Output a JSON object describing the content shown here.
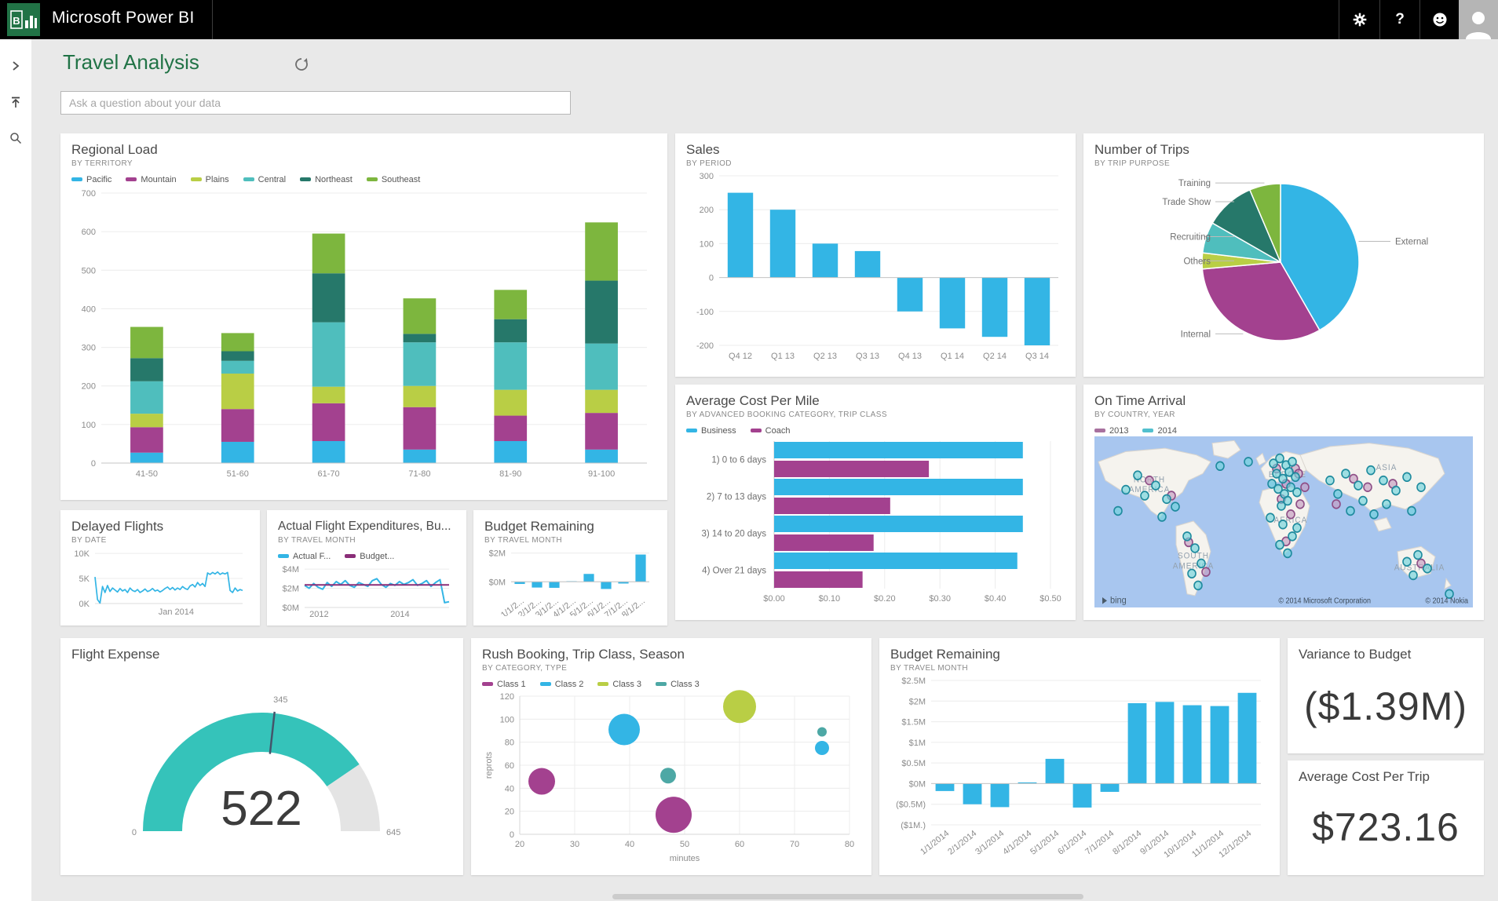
{
  "topbar": {
    "brand": "Microsoft Power BI"
  },
  "page": {
    "title": "Travel Analysis",
    "search_placeholder": "Ask a question about your data"
  },
  "cards": {
    "variance": {
      "title": "Variance to Budget",
      "value": "($1.39M)"
    },
    "avg_trip": {
      "title": "Average Cost Per Trip",
      "value": "$723.16"
    }
  },
  "chart_data": [
    {
      "id": "regional_load",
      "type": "bar",
      "stacked": true,
      "title": "Regional Load",
      "subtitle": "BY TERRITORY",
      "categories": [
        "41-50",
        "51-60",
        "61-70",
        "71-80",
        "81-90",
        "91-100"
      ],
      "series": [
        {
          "name": "Pacific",
          "color": "#33B5E5",
          "values": [
            27,
            55,
            57,
            35,
            57,
            35
          ]
        },
        {
          "name": "Mountain",
          "color": "#A3418F",
          "values": [
            66,
            85,
            98,
            110,
            66,
            95
          ]
        },
        {
          "name": "Plains",
          "color": "#B9CE45",
          "values": [
            35,
            92,
            43,
            55,
            67,
            60
          ]
        },
        {
          "name": "Central",
          "color": "#4FBEBD",
          "values": [
            84,
            33,
            167,
            113,
            123,
            120
          ]
        },
        {
          "name": "Northeast",
          "color": "#26786A",
          "values": [
            60,
            25,
            127,
            22,
            60,
            163
          ]
        },
        {
          "name": "Southeast",
          "color": "#7DB63E",
          "values": [
            81,
            47,
            103,
            92,
            76,
            151
          ]
        }
      ],
      "ylim": [
        0,
        700
      ],
      "yticks": [
        {
          "v": 700,
          "t": "700"
        },
        {
          "v": 600,
          "t": "600"
        },
        {
          "v": 500,
          "t": "500"
        },
        {
          "v": 400,
          "t": "400"
        },
        {
          "v": 300,
          "t": "300"
        },
        {
          "v": 200,
          "t": "200"
        },
        {
          "v": 100,
          "t": "100"
        },
        {
          "v": 0,
          "t": "0"
        }
      ],
      "grid": true,
      "legend_position": "top"
    },
    {
      "id": "sales",
      "type": "bar",
      "title": "Sales",
      "subtitle": "BY PERIOD",
      "color": "#33B5E5",
      "categories": [
        "Q4 12",
        "Q1 13",
        "Q2 13",
        "Q3 13",
        "Q4 13",
        "Q1 14",
        "Q2 14",
        "Q3 14"
      ],
      "values": [
        250,
        200,
        100,
        78,
        -100,
        -150,
        -175,
        -200
      ],
      "ylim": [
        -200,
        300
      ],
      "yticks": [
        {
          "v": 300,
          "t": "300"
        },
        {
          "v": 200,
          "t": "200"
        },
        {
          "v": 100,
          "t": "100"
        },
        {
          "v": 0,
          "t": "0"
        },
        {
          "v": -100,
          "t": "-100"
        },
        {
          "v": -200,
          "t": "-200"
        }
      ],
      "grid": true
    },
    {
      "id": "number_of_trips",
      "type": "pie",
      "title": "Number of Trips",
      "subtitle": "BY TRIP PURPOSE",
      "labels": [
        "External",
        "Internal",
        "Others",
        "Recruiting",
        "Trade Show",
        "Training"
      ],
      "values": [
        41.7,
        31.9,
        3.3,
        6.4,
        10.3,
        6.4
      ],
      "colors": [
        "#33B5E5",
        "#A3418F",
        "#B9CE45",
        "#4FBEBD",
        "#26786A",
        "#7DB63E"
      ]
    },
    {
      "id": "avg_cost_per_mile",
      "type": "hbar",
      "title": "Average Cost Per Mile",
      "subtitle": "BY ADVANCED BOOKING CATEGORY, TRIP CLASS",
      "categories": [
        "1) 0 to 6 days",
        "2) 7 to 13 days",
        "3) 14 to 20 days",
        "4) Over 21 days"
      ],
      "series": [
        {
          "name": "Business",
          "color": "#33B5E5",
          "values": [
            0.45,
            0.45,
            0.45,
            0.44
          ]
        },
        {
          "name": "Coach",
          "color": "#A3418F",
          "values": [
            0.28,
            0.21,
            0.18,
            0.16
          ]
        }
      ],
      "xlim": [
        0,
        0.5
      ],
      "xticks": [
        {
          "v": 0,
          "t": "$0.00"
        },
        {
          "v": 0.1,
          "t": "$0.10"
        },
        {
          "v": 0.2,
          "t": "$0.20"
        },
        {
          "v": 0.3,
          "t": "$0.30"
        },
        {
          "v": 0.4,
          "t": "$0.40"
        },
        {
          "v": 0.5,
          "t": "$0.50"
        }
      ],
      "grid": true
    },
    {
      "id": "on_time_arrival",
      "type": "map",
      "title": "On Time Arrival",
      "subtitle": "BY COUNTRY, YEAR",
      "legend": [
        {
          "label": "2013",
          "color": "#A8719F"
        },
        {
          "label": "2014",
          "color": "#52C0CE"
        }
      ],
      "labels": [
        {
          "t": "NORTH",
          "x": 70,
          "y": 54
        },
        {
          "t": "AMERICA",
          "x": 70,
          "y": 66
        },
        {
          "t": "SOUTH",
          "x": 126,
          "y": 144
        },
        {
          "t": "AMERICA",
          "x": 126,
          "y": 156
        },
        {
          "t": "EUROPE",
          "x": 246,
          "y": 48
        },
        {
          "t": "AFRICA",
          "x": 250,
          "y": 102
        },
        {
          "t": "ASIA",
          "x": 372,
          "y": 40
        },
        {
          "t": "AUSTRALIA",
          "x": 414,
          "y": 158
        }
      ],
      "points": {
        "y2014": [
          [
            78,
            58
          ],
          [
            92,
            74
          ],
          [
            64,
            70
          ],
          [
            103,
            83
          ],
          [
            40,
            63
          ],
          [
            55,
            46
          ],
          [
            86,
            95
          ],
          [
            30,
            88
          ],
          [
            160,
            35
          ],
          [
            196,
            30
          ],
          [
            118,
            118
          ],
          [
            128,
            132
          ],
          [
            136,
            150
          ],
          [
            124,
            162
          ],
          [
            132,
            176
          ],
          [
            228,
            32
          ],
          [
            236,
            26
          ],
          [
            244,
            34
          ],
          [
            232,
            44
          ],
          [
            240,
            50
          ],
          [
            248,
            42
          ],
          [
            252,
            30
          ],
          [
            256,
            48
          ],
          [
            226,
            56
          ],
          [
            234,
            62
          ],
          [
            242,
            68
          ],
          [
            250,
            60
          ],
          [
            258,
            66
          ],
          [
            246,
            76
          ],
          [
            238,
            82
          ],
          [
            224,
            96
          ],
          [
            240,
            104
          ],
          [
            252,
            118
          ],
          [
            236,
            128
          ],
          [
            246,
            138
          ],
          [
            258,
            108
          ],
          [
            300,
            52
          ],
          [
            320,
            44
          ],
          [
            336,
            58
          ],
          [
            352,
            40
          ],
          [
            368,
            52
          ],
          [
            384,
            64
          ],
          [
            398,
            48
          ],
          [
            342,
            76
          ],
          [
            310,
            68
          ],
          [
            326,
            88
          ],
          [
            356,
            92
          ],
          [
            372,
            80
          ],
          [
            404,
            88
          ],
          [
            416,
            60
          ],
          [
            398,
            148
          ],
          [
            412,
            140
          ],
          [
            424,
            156
          ],
          [
            406,
            164
          ],
          [
            452,
            186
          ]
        ],
        "y2013": [
          [
            70,
            52
          ],
          [
            120,
            125
          ],
          [
            232,
            38
          ],
          [
            244,
            56
          ],
          [
            238,
            74
          ],
          [
            256,
            38
          ],
          [
            250,
            92
          ],
          [
            262,
            80
          ],
          [
            268,
            60
          ],
          [
            348,
            60
          ],
          [
            380,
            56
          ],
          [
            416,
            150
          ],
          [
            244,
            124
          ],
          [
            308,
            80
          ],
          [
            330,
            50
          ],
          [
            98,
            70
          ],
          [
            142,
            160
          ],
          [
            260,
            44
          ]
        ]
      },
      "attribution": {
        "logo": "bing",
        "microsoft": "© 2014 Microsoft Corporation",
        "nokia": "© 2014 Nokia"
      }
    },
    {
      "id": "delayed_flights",
      "type": "line",
      "title": "Delayed Flights",
      "subtitle": "BY DATE",
      "series": [
        {
          "name": "Delayed Flights",
          "color": "#33B5E5",
          "values": [
            5.3,
            0.8,
            0.1,
            3.4,
            2.2,
            3.6,
            2.4,
            3.1,
            2.7,
            2.3,
            3.0,
            2.5,
            2.8,
            2.2,
            3.1,
            2.6,
            2.4,
            2.8,
            2.2,
            2.5,
            2.9,
            2.4,
            2.6,
            3.0,
            2.5,
            2.7,
            2.3,
            2.6,
            3.0,
            3.3,
            2.8,
            3.2,
            2.7,
            3.1,
            2.8,
            3.4,
            3.0,
            2.8,
            3.5,
            3.8,
            3.3,
            4.2,
            3.6,
            4.0,
            3.4,
            6.1,
            5.8,
            6.2,
            5.9,
            6.3,
            5.8,
            6.1,
            5.9,
            6.2,
            2.6,
            2.2,
            3.1,
            2.5,
            2.8,
            2.6
          ]
        }
      ],
      "ylim": [
        0,
        10.8
      ],
      "yticks": [
        {
          "v": 10,
          "t": "10K"
        },
        {
          "v": 5,
          "t": "5K"
        },
        {
          "v": 0,
          "t": "0K"
        }
      ],
      "xticks": [
        {
          "pos": 0.55,
          "t": "Jan 2014"
        }
      ]
    },
    {
      "id": "actual_flight_expenditures",
      "type": "line",
      "title": "Actual Flight Expenditures, Bu...",
      "subtitle": "BY TRAVEL MONTH",
      "series": [
        {
          "name": "Actual F...",
          "color": "#33B5E5",
          "values": [
            2.3,
            2.0,
            2.5,
            2.1,
            1.9,
            2.6,
            2.2,
            2.7,
            2.4,
            2.8,
            2.3,
            2.1,
            2.6,
            2.4,
            2.2,
            2.8,
            3.0,
            2.4,
            2.1,
            2.5,
            2.3,
            2.7,
            2.4,
            2.6,
            2.9,
            2.3,
            2.5,
            2.8,
            2.2,
            2.6,
            2.9,
            0.5,
            0.6
          ]
        },
        {
          "name": "Budget...",
          "color": "#8A2E78",
          "values": [
            2.35,
            2.35,
            2.35,
            2.35,
            2.35,
            2.35,
            2.35,
            2.35,
            2.35,
            2.35,
            2.35,
            2.35,
            2.35,
            2.35,
            2.35,
            2.35,
            2.35,
            2.35,
            2.35,
            2.35,
            2.35,
            2.35,
            2.35,
            2.35,
            2.35,
            2.35,
            2.35,
            2.35,
            2.35,
            2.35,
            2.35,
            2.35,
            2.35
          ]
        }
      ],
      "ylim": [
        0,
        4.5
      ],
      "yticks": [
        {
          "v": 4,
          "t": "$4M"
        },
        {
          "v": 2,
          "t": "$2M"
        },
        {
          "v": 0,
          "t": "$0M"
        }
      ],
      "xticks": [
        {
          "pos": 0.1,
          "t": "2012"
        },
        {
          "pos": 0.66,
          "t": "2014"
        }
      ]
    },
    {
      "id": "budget_remaining_small",
      "type": "bar",
      "title": "Budget Remaining",
      "subtitle": "BY TRAVEL MONTH",
      "color": "#33B5E5",
      "xrot": true,
      "categories": [
        "1/1/2...",
        "2/1/2...",
        "3/1/2...",
        "4/1/2...",
        "5/1/2...",
        "6/1/2...",
        "7/1/2...",
        "8/1/2..."
      ],
      "values": [
        -0.15,
        -0.4,
        -0.42,
        0.04,
        0.55,
        -0.5,
        -0.12,
        1.9
      ],
      "ylim": [
        -0.75,
        2.15
      ],
      "yticks": [
        {
          "v": 2,
          "t": "$2M"
        },
        {
          "v": 0,
          "t": "$0M"
        }
      ]
    },
    {
      "id": "flight_expense",
      "type": "gauge",
      "title": "Flight Expense",
      "value": 522,
      "min": 0,
      "max": 645,
      "target": 345,
      "value_label": "522",
      "min_label": "0",
      "max_label": "645",
      "target_label": "345",
      "color": "#35C3BA",
      "track_color": "#E4E4E4"
    },
    {
      "id": "rush_booking",
      "type": "bubble",
      "title": "Rush Booking, Trip Class, Season",
      "subtitle": "BY CATEGORY, TYPE",
      "xlabel": "minutes",
      "ylabel": "reprots",
      "xlim": [
        20,
        80
      ],
      "ylim": [
        0,
        120
      ],
      "xticks": [
        {
          "v": 20,
          "t": "20"
        },
        {
          "v": 30,
          "t": "30"
        },
        {
          "v": 40,
          "t": "40"
        },
        {
          "v": 50,
          "t": "50"
        },
        {
          "v": 60,
          "t": "60"
        },
        {
          "v": 70,
          "t": "70"
        },
        {
          "v": 80,
          "t": "80"
        }
      ],
      "yticks": [
        {
          "v": 120,
          "t": "120"
        },
        {
          "v": 100,
          "t": "100"
        },
        {
          "v": 80,
          "t": "80"
        },
        {
          "v": 60,
          "t": "60"
        },
        {
          "v": 40,
          "t": "40"
        },
        {
          "v": 20,
          "t": "20"
        },
        {
          "v": 0,
          "t": "0"
        }
      ],
      "series": [
        {
          "name": "Class 1",
          "color": "#A3418F",
          "points": [
            {
              "x": 24,
              "y": 46,
              "r": 17
            },
            {
              "x": 48,
              "y": 17,
              "r": 23
            }
          ]
        },
        {
          "name": "Class 2",
          "color": "#33B5E5",
          "points": [
            {
              "x": 39,
              "y": 91,
              "r": 20
            },
            {
              "x": 75,
              "y": 75,
              "r": 9
            }
          ]
        },
        {
          "name": "Class 3",
          "color": "#B9CE45",
          "points": [
            {
              "x": 60,
              "y": 111,
              "r": 21
            }
          ]
        },
        {
          "name": "Class 3",
          "color": "#4DA8A5",
          "points": [
            {
              "x": 47,
              "y": 51,
              "r": 10
            },
            {
              "x": 75,
              "y": 89,
              "r": 6
            }
          ]
        }
      ]
    },
    {
      "id": "budget_remaining",
      "type": "bar",
      "title": "Budget Remaining",
      "subtitle": "BY TRAVEL MONTH",
      "color": "#33B5E5",
      "xrot": true,
      "categories": [
        "1/1/2014",
        "2/1/2014",
        "3/1/2014",
        "4/1/2014",
        "5/1/2014",
        "6/1/2014",
        "7/1/2014",
        "8/1/2014",
        "9/1/2014",
        "10/1/2014",
        "11/1/2014",
        "12/1/2014"
      ],
      "values": [
        -0.18,
        -0.5,
        -0.57,
        0.03,
        0.6,
        -0.58,
        -0.2,
        1.95,
        1.98,
        1.9,
        1.88,
        2.2
      ],
      "ylim": [
        -1,
        2.5
      ],
      "yticks": [
        {
          "v": 2.5,
          "t": "$2.5M"
        },
        {
          "v": 2,
          "t": "$2M"
        },
        {
          "v": 1.5,
          "t": "$1.5M"
        },
        {
          "v": 1,
          "t": "$1M"
        },
        {
          "v": 0.5,
          "t": "$0.5M"
        },
        {
          "v": 0,
          "t": "$0M"
        },
        {
          "v": -0.5,
          "t": "($0.5M)"
        },
        {
          "v": -1,
          "t": "($1M.)"
        }
      ],
      "grid": true
    }
  ]
}
